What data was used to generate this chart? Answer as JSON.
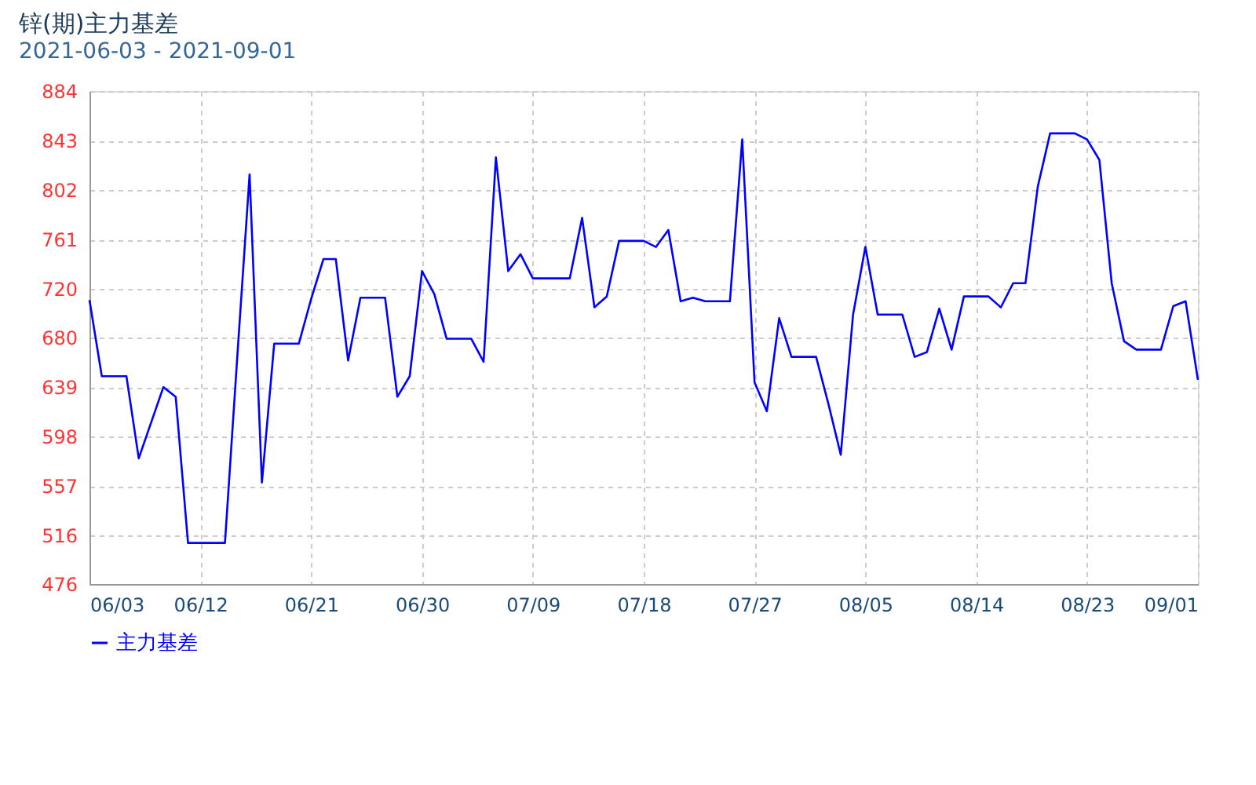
{
  "chart_data": {
    "type": "line",
    "title": "锌(期)主力基差",
    "subtitle": "2021-06-03 - 2021-09-01",
    "x": [
      "2021-06-03",
      "2021-06-04",
      "2021-06-06",
      "2021-06-07",
      "2021-06-09",
      "2021-06-10",
      "2021-06-11",
      "2021-06-14",
      "2021-06-15",
      "2021-06-16",
      "2021-06-17",
      "2021-06-18",
      "2021-06-20",
      "2021-06-21",
      "2021-06-22",
      "2021-06-23",
      "2021-06-24",
      "2021-06-25",
      "2021-06-27",
      "2021-06-28",
      "2021-06-29",
      "2021-06-30",
      "2021-07-01",
      "2021-07-02",
      "2021-07-04",
      "2021-07-05",
      "2021-07-06",
      "2021-07-07",
      "2021-07-08",
      "2021-07-09",
      "2021-07-12",
      "2021-07-13",
      "2021-07-14",
      "2021-07-15",
      "2021-07-16",
      "2021-07-18",
      "2021-07-19",
      "2021-07-20",
      "2021-07-21",
      "2021-07-22",
      "2021-07-23",
      "2021-07-25",
      "2021-07-26",
      "2021-07-27",
      "2021-07-28",
      "2021-07-29",
      "2021-07-30",
      "2021-08-01",
      "2021-08-02",
      "2021-08-03",
      "2021-08-04",
      "2021-08-05",
      "2021-08-06",
      "2021-08-08",
      "2021-08-09",
      "2021-08-10",
      "2021-08-11",
      "2021-08-12",
      "2021-08-13",
      "2021-08-15",
      "2021-08-16",
      "2021-08-17",
      "2021-08-18",
      "2021-08-19",
      "2021-08-20",
      "2021-08-22",
      "2021-08-23",
      "2021-08-24",
      "2021-08-25",
      "2021-08-26",
      "2021-08-27",
      "2021-08-29",
      "2021-08-30",
      "2021-08-31",
      "2021-09-01"
    ],
    "series": [
      {
        "name": "主力基差",
        "color": "#0000ff",
        "values": [
          711,
          648,
          648,
          580,
          639,
          631,
          510,
          510,
          664,
          815,
          560,
          675,
          675,
          712,
          745,
          745,
          661,
          713,
          713,
          631,
          648,
          735,
          716,
          679,
          679,
          660,
          829,
          735,
          749,
          729,
          729,
          779,
          705,
          714,
          760,
          760,
          755,
          769,
          710,
          713,
          710,
          710,
          844,
          643,
          619,
          696,
          664,
          664,
          625,
          583,
          699,
          755,
          699,
          699,
          664,
          668,
          704,
          670,
          714,
          714,
          705,
          725,
          725,
          805,
          849,
          849,
          844,
          827,
          725,
          677,
          670,
          670,
          706,
          710,
          645
        ]
      }
    ],
    "ylim": [
      476,
      884
    ],
    "yticks": [
      476,
      516,
      557,
      598,
      639,
      680,
      720,
      761,
      802,
      843,
      884
    ],
    "xlim": [
      "2021-06-03",
      "2021-09-01"
    ],
    "xticks": [
      {
        "value": "2021-06-03",
        "label": "06/03"
      },
      {
        "value": "2021-06-12",
        "label": "06/12"
      },
      {
        "value": "2021-06-21",
        "label": "06/21"
      },
      {
        "value": "2021-06-30",
        "label": "06/30"
      },
      {
        "value": "2021-07-09",
        "label": "07/09"
      },
      {
        "value": "2021-07-18",
        "label": "07/18"
      },
      {
        "value": "2021-07-27",
        "label": "07/27"
      },
      {
        "value": "2021-08-05",
        "label": "08/05"
      },
      {
        "value": "2021-08-14",
        "label": "08/14"
      },
      {
        "value": "2021-08-23",
        "label": "08/23"
      },
      {
        "value": "2021-09-01",
        "label": "09/01"
      }
    ],
    "grid": true,
    "legend": "bottom left"
  }
}
